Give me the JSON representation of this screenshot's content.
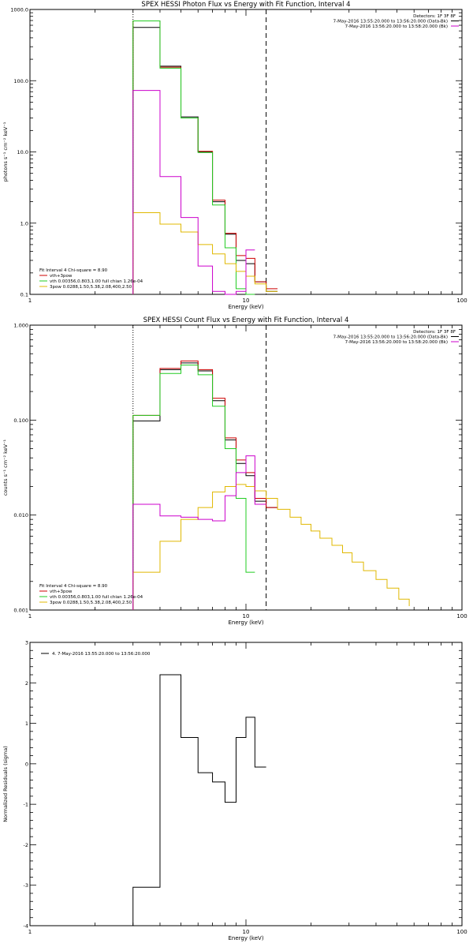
{
  "colors": {
    "black": "#000000",
    "red": "#cc0000",
    "green": "#22cc22",
    "magenta": "#cc00cc",
    "yellow": "#e0b800"
  },
  "chart_data": [
    {
      "type": "line",
      "title": "SPEX HESSI Photon Flux vs Energy with Fit Function, Interval 4",
      "xlabel": "Energy (keV)",
      "ylabel": "photons s⁻¹ cm⁻² keV⁻¹",
      "xscale": "log",
      "yscale": "log",
      "xlim": [
        1,
        100
      ],
      "ylim": [
        0.1,
        1000
      ],
      "xticks": [
        1,
        10,
        100
      ],
      "xticklabels": [
        "1",
        "10",
        "100"
      ],
      "yticks": [
        0.1,
        1,
        10,
        100,
        1000
      ],
      "yticklabels": [
        "0.1",
        "1.0",
        "10.0",
        "100.0",
        "1000.0"
      ],
      "vlines": [
        {
          "x": 3.0,
          "style": "dotted"
        },
        {
          "x": 12.4,
          "style": "dashed"
        }
      ],
      "bin_edges": [
        3.0,
        4.0,
        5.0,
        6.0,
        7.0,
        8.0,
        9.0,
        10.0,
        11.0,
        12.4,
        14.0
      ],
      "series": [
        {
          "name": "",
          "color": "black",
          "values": [
            560,
            160,
            31,
            10,
            2.0,
            0.7,
            0.3,
            0.27,
            0.15,
            0.11
          ]
        },
        {
          "name": "vth+3pow",
          "color": "red",
          "values": [
            690,
            155,
            30,
            10.2,
            2.1,
            0.72,
            0.35,
            0.32,
            0.15,
            0.12
          ]
        },
        {
          "name": "vth 0.00356,0.803,1.00  full chian 1.26e-04",
          "color": "green",
          "values": [
            690,
            150,
            30,
            9.8,
            1.8,
            0.45,
            0.12,
            0.05
          ]
        },
        {
          "name": "3pow 0.0288,1.50,5.38,2.08,400,2.50",
          "color": "yellow",
          "values": [
            1.4,
            0.97,
            0.75,
            0.5,
            0.37,
            0.27,
            0.21,
            0.18,
            0.14,
            0.11
          ]
        },
        {
          "name": "",
          "color": "magenta",
          "values": [
            73,
            4.5,
            1.2,
            0.25,
            0.11,
            0.095,
            0.11,
            0.42
          ]
        }
      ],
      "legend_header": "Fit Interval 4   Chi-square = 8.90",
      "legend_placement": "bottom-left",
      "top_right_lines": [
        {
          "text": "Detectors: 1F 3F 8F",
          "color": ""
        },
        {
          "text": "7-May-2016 13:55:20.000 to 13:56:20.000 (Data-Bk)",
          "color": "black"
        },
        {
          "text": "7-May-2016 13:56:20.000 to 13:58:20.000 (Bk)",
          "color": "magenta"
        }
      ]
    },
    {
      "type": "line",
      "title": "SPEX HESSI Count Flux vs Energy with Fit Function, Interval 4",
      "xlabel": "Energy (keV)",
      "ylabel": "counts s⁻¹ cm⁻² keV⁻¹",
      "xscale": "log",
      "yscale": "log",
      "xlim": [
        1,
        100
      ],
      "ylim": [
        0.001,
        1
      ],
      "xticks": [
        1,
        10,
        100
      ],
      "xticklabels": [
        "1",
        "10",
        "100"
      ],
      "yticks": [
        0.001,
        0.01,
        0.1,
        1
      ],
      "yticklabels": [
        "0.001",
        "0.010",
        "0.100",
        "1.000"
      ],
      "vlines": [
        {
          "x": 3.0,
          "style": "dotted"
        },
        {
          "x": 12.4,
          "style": "dashed"
        }
      ],
      "bin_edges": [
        3.0,
        4.0,
        5.0,
        6.0,
        7.0,
        8.0,
        9.0,
        10.0,
        11.0,
        12.4,
        14.0
      ],
      "series": [
        {
          "name": "",
          "color": "black",
          "values": [
            0.098,
            0.34,
            0.4,
            0.33,
            0.16,
            0.062,
            0.035,
            0.026,
            0.014,
            0.012
          ]
        },
        {
          "name": "vth+3pow",
          "color": "red",
          "values": [
            0.112,
            0.35,
            0.42,
            0.34,
            0.17,
            0.065,
            0.038,
            0.028,
            0.015,
            0.012
          ]
        },
        {
          "name": "vth 0.00356,0.803,1.00  full chian 1.26e-04",
          "color": "green",
          "values": [
            0.112,
            0.31,
            0.38,
            0.3,
            0.14,
            0.05,
            0.015,
            0.0025
          ]
        },
        {
          "name": "3pow 0.0288,1.50,5.38,2.08,400,2.50",
          "color": "yellow",
          "edges": [
            3.0,
            4.0,
            5.0,
            6.0,
            7.0,
            8.0,
            9.0,
            10.0,
            11.0,
            12.4,
            14.0,
            16.0,
            18.0,
            20.0,
            22.0,
            25.0,
            28.0,
            31.0,
            35.0,
            40.0,
            45.0,
            51.0,
            57.0
          ],
          "values": [
            0.0025,
            0.0053,
            0.009,
            0.012,
            0.0175,
            0.02,
            0.021,
            0.02,
            0.018,
            0.015,
            0.0115,
            0.0095,
            0.008,
            0.0068,
            0.0057,
            0.0048,
            0.004,
            0.0032,
            0.0026,
            0.0021,
            0.0017,
            0.0013,
            0.0011
          ]
        },
        {
          "name": "",
          "color": "magenta",
          "values": [
            0.013,
            0.0098,
            0.0095,
            0.009,
            0.0087,
            0.016,
            0.028,
            0.042,
            0.013
          ]
        }
      ],
      "legend_header": "Fit Interval 4   Chi-square = 8.90",
      "legend_placement": "bottom-left",
      "top_right_lines": [
        {
          "text": "Detectors: 1F 3F 8F",
          "color": ""
        },
        {
          "text": "7-May-2016 13:55:20.000 to 13:56:20.000 (Data-Bk)",
          "color": "black"
        },
        {
          "text": "7-May-2016 13:56:20.000 to 13:58:20.000 (Bk)",
          "color": "magenta"
        }
      ]
    },
    {
      "type": "line",
      "title": "",
      "xlabel": "Energy (keV)",
      "ylabel": "Normalized Residuals (sigma)",
      "xscale": "log",
      "yscale": "linear",
      "xlim": [
        1,
        100
      ],
      "ylim": [
        -4,
        3
      ],
      "xticks": [
        1,
        10,
        100
      ],
      "xticklabels": [
        "1",
        "10",
        "100"
      ],
      "yticks": [
        -4,
        -3,
        -2,
        -1,
        0,
        1,
        2,
        3
      ],
      "yticklabels": [
        "-4",
        "-3",
        "-2",
        "-1",
        "0",
        "1",
        "2",
        "3"
      ],
      "bin_edges": [
        3.0,
        4.0,
        5.0,
        6.0,
        7.0,
        8.0,
        9.0,
        10.0,
        11.0,
        12.4
      ],
      "series": [
        {
          "name": "4. 7-May-2016 13:55:20.000 to 13:56:20.000",
          "color": "black",
          "values": [
            -3.05,
            2.2,
            0.65,
            -0.22,
            -0.45,
            -0.95,
            0.65,
            1.15,
            -0.08
          ]
        }
      ],
      "legend_placement": "top-left"
    }
  ]
}
